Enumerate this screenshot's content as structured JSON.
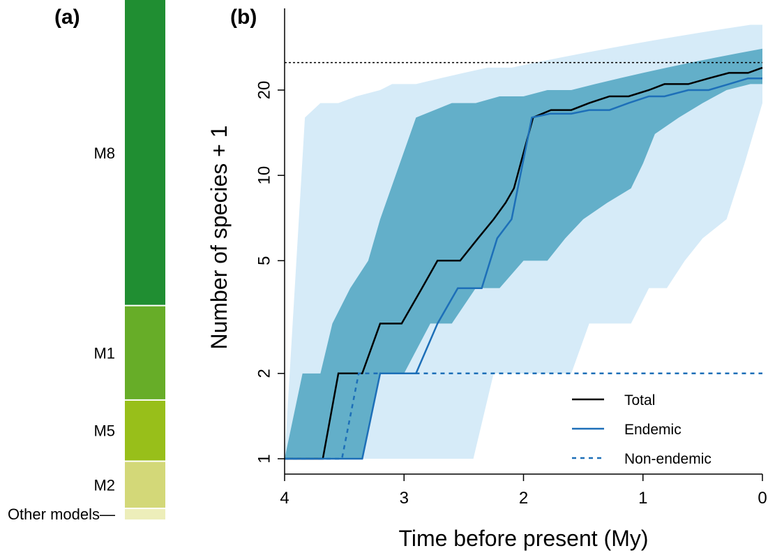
{
  "panel_a": {
    "label": "(a)",
    "segments": [
      {
        "name": "M8",
        "label": "M8",
        "color": "#208e32",
        "fraction": 0.55
      },
      {
        "name": "M1",
        "label": "M1",
        "color": "#67ad28",
        "fraction": 0.17
      },
      {
        "name": "M5",
        "label": "M5",
        "color": "#98bf1a",
        "fraction": 0.11
      },
      {
        "name": "M2",
        "label": "M2",
        "color": "#d3d878",
        "fraction": 0.085
      },
      {
        "name": "Other models",
        "label": "Other models—",
        "color": "#edeeba",
        "fraction": 0.02
      }
    ]
  },
  "chart_data": {
    "label": "(b)",
    "type": "line",
    "xlabel": "Time before present (My)",
    "ylabel": "Number of species + 1",
    "x_reversed": true,
    "y_log": true,
    "xlim": [
      4,
      0
    ],
    "ylim": [
      1,
      32
    ],
    "x_ticks": [
      4,
      3,
      2,
      1,
      0
    ],
    "y_ticks": [
      1,
      2,
      5,
      10,
      20
    ],
    "reference_line": {
      "y": 25,
      "style": "dotted",
      "color": "#000000"
    },
    "bands": [
      {
        "color": "#d6ebf8",
        "upper": [
          [
            4.0,
            1
          ],
          [
            3.83,
            16
          ],
          [
            3.7,
            18
          ],
          [
            3.55,
            18
          ],
          [
            3.4,
            19
          ],
          [
            3.2,
            20
          ],
          [
            3.1,
            21
          ],
          [
            2.9,
            21
          ],
          [
            2.7,
            22
          ],
          [
            2.5,
            23
          ],
          [
            2.3,
            24
          ],
          [
            2.1,
            24
          ],
          [
            1.9,
            25
          ],
          [
            1.7,
            26
          ],
          [
            1.5,
            27
          ],
          [
            1.3,
            28
          ],
          [
            1.1,
            29
          ],
          [
            0.9,
            30
          ],
          [
            0.7,
            31
          ],
          [
            0.5,
            32
          ],
          [
            0.3,
            33
          ],
          [
            0.1,
            34
          ],
          [
            0.0,
            34
          ]
        ],
        "lower": [
          [
            4.0,
            1
          ],
          [
            3.6,
            1
          ],
          [
            3.2,
            1
          ],
          [
            2.8,
            1
          ],
          [
            2.42,
            1
          ],
          [
            2.25,
            2
          ],
          [
            1.9,
            2
          ],
          [
            1.6,
            2
          ],
          [
            1.45,
            3
          ],
          [
            1.3,
            3
          ],
          [
            1.1,
            3
          ],
          [
            0.95,
            4
          ],
          [
            0.8,
            4
          ],
          [
            0.65,
            5
          ],
          [
            0.5,
            6
          ],
          [
            0.3,
            7
          ],
          [
            0.15,
            11
          ],
          [
            0.0,
            18
          ]
        ]
      },
      {
        "color": "#63afc9",
        "upper": [
          [
            4.0,
            1
          ],
          [
            3.85,
            2
          ],
          [
            3.7,
            2
          ],
          [
            3.6,
            3
          ],
          [
            3.45,
            4
          ],
          [
            3.3,
            5
          ],
          [
            3.2,
            7
          ],
          [
            2.9,
            16
          ],
          [
            2.6,
            18
          ],
          [
            2.4,
            18
          ],
          [
            2.2,
            19
          ],
          [
            2.0,
            19
          ],
          [
            1.8,
            20
          ],
          [
            1.6,
            20
          ],
          [
            1.4,
            21
          ],
          [
            1.2,
            22
          ],
          [
            1.0,
            23
          ],
          [
            0.8,
            24
          ],
          [
            0.6,
            25
          ],
          [
            0.4,
            26
          ],
          [
            0.2,
            27
          ],
          [
            0.0,
            28
          ]
        ],
        "lower": [
          [
            4.0,
            1
          ],
          [
            3.7,
            1
          ],
          [
            3.5,
            1
          ],
          [
            3.35,
            1
          ],
          [
            3.2,
            2
          ],
          [
            3.0,
            2
          ],
          [
            2.78,
            3
          ],
          [
            2.6,
            3
          ],
          [
            2.4,
            4
          ],
          [
            2.2,
            4
          ],
          [
            2.0,
            5
          ],
          [
            1.8,
            5
          ],
          [
            1.65,
            6
          ],
          [
            1.5,
            7
          ],
          [
            1.3,
            8
          ],
          [
            1.1,
            9
          ],
          [
            1.0,
            11
          ],
          [
            0.9,
            14
          ],
          [
            0.7,
            16
          ],
          [
            0.5,
            18
          ],
          [
            0.3,
            20
          ],
          [
            0.1,
            21
          ],
          [
            0.0,
            21
          ]
        ]
      }
    ],
    "series": [
      {
        "name": "Total",
        "color": "#000000",
        "dash": "none",
        "points": [
          [
            4.0,
            1
          ],
          [
            3.68,
            1
          ],
          [
            3.55,
            2
          ],
          [
            3.35,
            2
          ],
          [
            3.2,
            3
          ],
          [
            3.02,
            3
          ],
          [
            2.85,
            4
          ],
          [
            2.72,
            5
          ],
          [
            2.53,
            5
          ],
          [
            2.38,
            6
          ],
          [
            2.25,
            7
          ],
          [
            2.15,
            8
          ],
          [
            2.08,
            9
          ],
          [
            1.92,
            16
          ],
          [
            1.77,
            17
          ],
          [
            1.6,
            17
          ],
          [
            1.45,
            18
          ],
          [
            1.28,
            19
          ],
          [
            1.12,
            19
          ],
          [
            0.95,
            20
          ],
          [
            0.82,
            21
          ],
          [
            0.62,
            21
          ],
          [
            0.45,
            22
          ],
          [
            0.28,
            23
          ],
          [
            0.12,
            23
          ],
          [
            0.0,
            24
          ]
        ]
      },
      {
        "name": "Endemic",
        "color": "#1d6fb8",
        "dash": "none",
        "points": [
          [
            4.0,
            1
          ],
          [
            3.35,
            1
          ],
          [
            3.2,
            2
          ],
          [
            2.9,
            2
          ],
          [
            2.72,
            3
          ],
          [
            2.55,
            4
          ],
          [
            2.35,
            4
          ],
          [
            2.22,
            6
          ],
          [
            2.1,
            7
          ],
          [
            1.93,
            16
          ],
          [
            1.78,
            16.5
          ],
          [
            1.6,
            16.5
          ],
          [
            1.45,
            17
          ],
          [
            1.28,
            17
          ],
          [
            1.12,
            18
          ],
          [
            0.95,
            19
          ],
          [
            0.82,
            19
          ],
          [
            0.62,
            20
          ],
          [
            0.45,
            20
          ],
          [
            0.28,
            21
          ],
          [
            0.12,
            22
          ],
          [
            0.0,
            22
          ]
        ]
      },
      {
        "name": "Non-endemic",
        "color": "#1d6fb8",
        "dash": "6,6",
        "points": [
          [
            4.0,
            1
          ],
          [
            3.52,
            1
          ],
          [
            3.38,
            2
          ],
          [
            0.0,
            2
          ]
        ]
      }
    ],
    "legend": {
      "placement": "bottom-right",
      "entries": [
        {
          "label": "Total",
          "color": "#000000",
          "dash": "none"
        },
        {
          "label": "Endemic",
          "color": "#1d6fb8",
          "dash": "none"
        },
        {
          "label": "Non-endemic",
          "color": "#1d6fb8",
          "dash": "6,6"
        }
      ]
    }
  }
}
